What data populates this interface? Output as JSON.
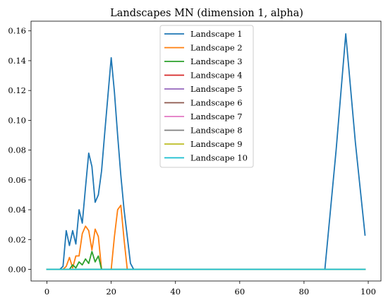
{
  "chart_data": {
    "type": "line",
    "title": "Landscapes MN (dimension 1, alpha)",
    "xlabel": "",
    "ylabel": "",
    "xlim": [
      -4.95,
      103.95
    ],
    "ylim": [
      -0.0078,
      0.1665
    ],
    "x_ticks": [
      0,
      20,
      40,
      60,
      80,
      100
    ],
    "y_ticks": [
      0.0,
      0.02,
      0.04,
      0.06,
      0.08,
      0.1,
      0.12,
      0.14,
      0.16
    ],
    "y_tick_labels": [
      "0.00",
      "0.02",
      "0.04",
      "0.06",
      "0.08",
      "0.10",
      "0.12",
      "0.14",
      "0.16"
    ],
    "x_tick_labels": [
      "0",
      "20",
      "40",
      "60",
      "80",
      "100"
    ],
    "legend_position": "upper-center",
    "grid": false,
    "series": [
      {
        "name": "Landscape 1",
        "color": "#1f77b4",
        "points": [
          [
            0,
            0
          ],
          [
            1,
            0
          ],
          [
            2,
            0
          ],
          [
            3,
            0
          ],
          [
            4,
            0
          ],
          [
            5,
            0.002
          ],
          [
            6,
            0.026
          ],
          [
            7,
            0.016
          ],
          [
            8,
            0.026
          ],
          [
            9,
            0.017
          ],
          [
            10,
            0.04
          ],
          [
            11,
            0.031
          ],
          [
            12,
            0.055
          ],
          [
            13,
            0.078
          ],
          [
            14,
            0.069
          ],
          [
            15,
            0.045
          ],
          [
            16,
            0.05
          ],
          [
            17,
            0.066
          ],
          [
            18,
            0.092
          ],
          [
            19,
            0.117
          ],
          [
            20,
            0.142
          ],
          [
            21,
            0.119
          ],
          [
            22,
            0.09
          ],
          [
            23,
            0.063
          ],
          [
            24,
            0.04
          ],
          [
            25,
            0.022
          ],
          [
            26,
            0.004
          ],
          [
            27,
            0
          ],
          [
            30,
            0
          ],
          [
            40,
            0
          ],
          [
            50,
            0
          ],
          [
            60,
            0
          ],
          [
            70,
            0
          ],
          [
            80,
            0
          ],
          [
            86.5,
            0
          ],
          [
            90,
            0.08
          ],
          [
            93,
            0.158
          ],
          [
            96,
            0.085
          ],
          [
            99,
            0.023
          ]
        ]
      },
      {
        "name": "Landscape 2",
        "color": "#ff7f0e",
        "points": [
          [
            0,
            0
          ],
          [
            5,
            0
          ],
          [
            6,
            0.002
          ],
          [
            7,
            0.008
          ],
          [
            8,
            0.001
          ],
          [
            9,
            0.009
          ],
          [
            10,
            0.009
          ],
          [
            11,
            0.024
          ],
          [
            12,
            0.029
          ],
          [
            13,
            0.026
          ],
          [
            14,
            0.013
          ],
          [
            15,
            0.027
          ],
          [
            16,
            0.022
          ],
          [
            17,
            0
          ],
          [
            18,
            0
          ],
          [
            19,
            0
          ],
          [
            20,
            0
          ],
          [
            21,
            0.022
          ],
          [
            22,
            0.04
          ],
          [
            23,
            0.043
          ],
          [
            24,
            0.02
          ],
          [
            25,
            0
          ],
          [
            30,
            0
          ],
          [
            60,
            0
          ],
          [
            99,
            0
          ]
        ]
      },
      {
        "name": "Landscape 3",
        "color": "#2ca02c",
        "points": [
          [
            0,
            0
          ],
          [
            7,
            0
          ],
          [
            8,
            0.003
          ],
          [
            9,
            0.001
          ],
          [
            10,
            0.005
          ],
          [
            11,
            0.003
          ],
          [
            12,
            0.007
          ],
          [
            13,
            0.004
          ],
          [
            14,
            0.012
          ],
          [
            15,
            0.005
          ],
          [
            16,
            0.009
          ],
          [
            17,
            0
          ],
          [
            30,
            0
          ],
          [
            99,
            0
          ]
        ]
      },
      {
        "name": "Landscape 4",
        "color": "#d62728",
        "points": [
          [
            0,
            0
          ],
          [
            99,
            0
          ]
        ]
      },
      {
        "name": "Landscape 5",
        "color": "#9467bd",
        "points": [
          [
            0,
            0
          ],
          [
            99,
            0
          ]
        ]
      },
      {
        "name": "Landscape 6",
        "color": "#8c564b",
        "points": [
          [
            0,
            0
          ],
          [
            99,
            0
          ]
        ]
      },
      {
        "name": "Landscape 7",
        "color": "#e377c2",
        "points": [
          [
            0,
            0
          ],
          [
            99,
            0
          ]
        ]
      },
      {
        "name": "Landscape 8",
        "color": "#7f7f7f",
        "points": [
          [
            0,
            0
          ],
          [
            99,
            0
          ]
        ]
      },
      {
        "name": "Landscape 9",
        "color": "#bcbd22",
        "points": [
          [
            0,
            0
          ],
          [
            99,
            0
          ]
        ]
      },
      {
        "name": "Landscape 10",
        "color": "#17becf",
        "points": [
          [
            0,
            0
          ],
          [
            99,
            0
          ]
        ]
      }
    ]
  }
}
